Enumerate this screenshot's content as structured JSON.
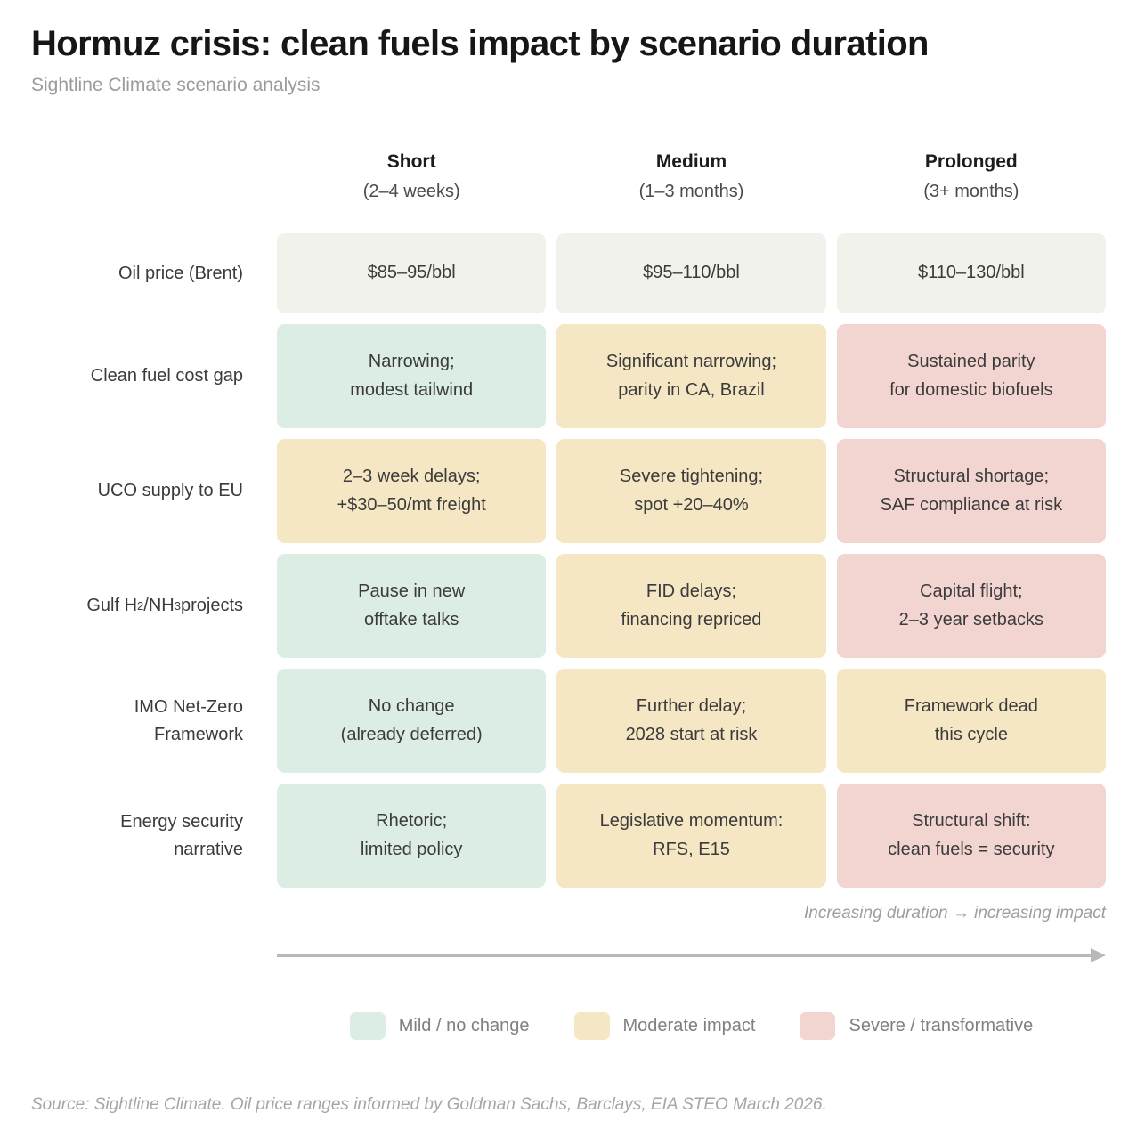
{
  "header": {
    "title": "Hormuz crisis: clean fuels impact by scenario duration",
    "subtitle": "Sightline Climate scenario analysis"
  },
  "chart_data": {
    "type": "table",
    "title": "Hormuz crisis: clean fuels impact by scenario duration",
    "columns": [
      {
        "label": "Short",
        "sublabel": "(2–4 weeks)"
      },
      {
        "label": "Medium",
        "sublabel": "(1–3 months)"
      },
      {
        "label": "Prolonged",
        "sublabel": "(3+ months)"
      }
    ],
    "rows": [
      {
        "label": "Oil price (Brent)",
        "cells": [
          {
            "text": "$85–95/bbl",
            "level": "neutral",
            "color": "#f1f2ec"
          },
          {
            "text": "$95–110/bbl",
            "level": "neutral",
            "color": "#f1f2ec"
          },
          {
            "text": "$110–130/bbl",
            "level": "neutral",
            "color": "#f1f2ec"
          }
        ]
      },
      {
        "label": "Clean fuel cost gap",
        "cells": [
          {
            "text": "Narrowing;\nmodest tailwind",
            "level": "mild",
            "color": "#dcede4"
          },
          {
            "text": "Significant narrowing;\nparity in CA, Brazil",
            "level": "moderate",
            "color": "#f5e6c4"
          },
          {
            "text": "Sustained parity\nfor domestic biofuels",
            "level": "severe",
            "color": "#f2d5d1"
          }
        ]
      },
      {
        "label": "UCO supply to EU",
        "cells": [
          {
            "text": "2–3 week delays;\n+$30–50/mt freight",
            "level": "moderate",
            "color": "#f5e6c4"
          },
          {
            "text": "Severe tightening;\nspot +20–40%",
            "level": "moderate",
            "color": "#f5e6c4"
          },
          {
            "text": "Structural shortage;\nSAF compliance at risk",
            "level": "severe",
            "color": "#f2d5d1"
          }
        ]
      },
      {
        "label_parts": [
          "Gulf H",
          "2",
          "/NH",
          "3",
          " projects"
        ],
        "cells": [
          {
            "text": "Pause in new\nofftake talks",
            "level": "mild",
            "color": "#dcede4"
          },
          {
            "text": "FID delays;\nfinancing repriced",
            "level": "moderate",
            "color": "#f5e6c4"
          },
          {
            "text": "Capital flight;\n2–3 year setbacks",
            "level": "severe",
            "color": "#f2d5d1"
          }
        ]
      },
      {
        "label": "IMO Net-Zero\nFramework",
        "cells": [
          {
            "text": "No change\n(already deferred)",
            "level": "mild",
            "color": "#dcede4"
          },
          {
            "text": "Further delay;\n2028 start at risk",
            "level": "moderate",
            "color": "#f5e6c4"
          },
          {
            "text": "Framework dead\nthis cycle",
            "level": "moderate",
            "color": "#f5e6c4"
          }
        ]
      },
      {
        "label": "Energy security\nnarrative",
        "cells": [
          {
            "text": "Rhetoric;\nlimited policy",
            "level": "mild",
            "color": "#dcede4"
          },
          {
            "text": "Legislative momentum:\nRFS, E15",
            "level": "moderate",
            "color": "#f5e6c4"
          },
          {
            "text": "Structural shift:\nclean fuels = security",
            "level": "severe",
            "color": "#f2d5d1"
          }
        ]
      }
    ],
    "annotation": "Increasing duration → increasing impact",
    "legend": [
      {
        "label": "Mild / no change",
        "level": "mild",
        "color": "#dcede4"
      },
      {
        "label": "Moderate impact",
        "level": "moderate",
        "color": "#f5e6c4"
      },
      {
        "label": "Severe / transformative",
        "level": "severe",
        "color": "#f2d5d1"
      }
    ]
  },
  "footer": {
    "source": "Source: Sightline Climate. Oil price ranges informed by Goldman Sachs, Barclays, EIA STEO March 2026."
  }
}
